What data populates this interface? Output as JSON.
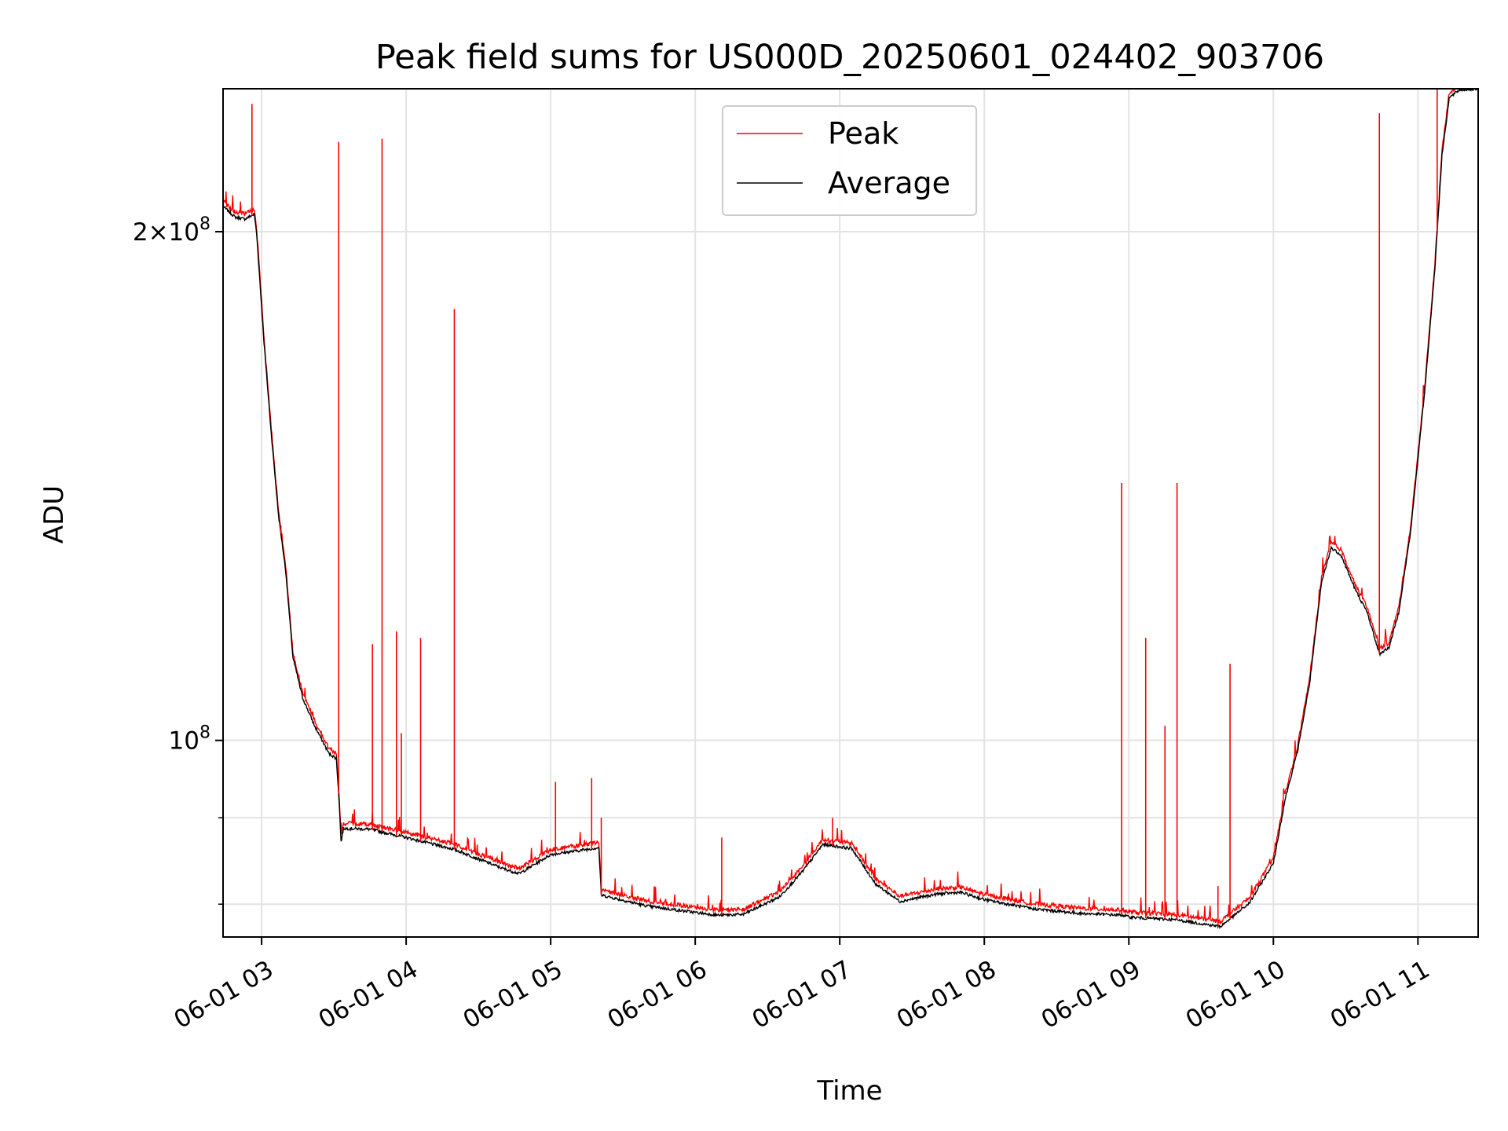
{
  "chart_data": {
    "type": "line",
    "title": "Peak field sums for US000D_20250601_024402_903706",
    "xlabel": "Time",
    "ylabel": "ADU",
    "y_scale": "log",
    "grid": true,
    "legend_position": "top-center",
    "xlim": [
      "2025-06-01 02:44",
      "2025-06-01 11:25"
    ],
    "ylim": [
      76500000,
      243000000
    ],
    "x_ticks": [
      {
        "at": "2025-06-01 03:00",
        "label": "06-01 03"
      },
      {
        "at": "2025-06-01 04:00",
        "label": "06-01 04"
      },
      {
        "at": "2025-06-01 05:00",
        "label": "06-01 05"
      },
      {
        "at": "2025-06-01 06:00",
        "label": "06-01 06"
      },
      {
        "at": "2025-06-01 07:00",
        "label": "06-01 07"
      },
      {
        "at": "2025-06-01 08:00",
        "label": "06-01 08"
      },
      {
        "at": "2025-06-01 09:00",
        "label": "06-01 09"
      },
      {
        "at": "2025-06-01 10:00",
        "label": "06-01 10"
      },
      {
        "at": "2025-06-01 11:00",
        "label": "06-01 11"
      }
    ],
    "y_ticks": [
      {
        "value": 100000000,
        "base": "10",
        "exp": "8",
        "coef": ""
      },
      {
        "value": 200000000,
        "base": "10",
        "exp": "8",
        "coef": "2"
      }
    ],
    "y_minor_ticks": [
      80000000,
      90000000
    ],
    "series": [
      {
        "name": "Average",
        "color": "#000000",
        "points": [
          [
            "2025-06-01 02:44",
            207000000
          ],
          [
            "2025-06-01 02:49",
            204000000
          ],
          [
            "2025-06-01 02:53",
            203500000
          ],
          [
            "2025-06-01 02:57",
            204800000
          ],
          [
            "2025-06-01 02:58",
            199000000
          ],
          [
            "2025-06-01 03:01",
            172000000
          ],
          [
            "2025-06-01 03:04",
            152000000
          ],
          [
            "2025-06-01 03:07",
            136000000
          ],
          [
            "2025-06-01 03:10",
            126000000
          ],
          [
            "2025-06-01 03:13",
            112000000
          ],
          [
            "2025-06-01 03:17",
            106000000
          ],
          [
            "2025-06-01 03:22",
            102000000
          ],
          [
            "2025-06-01 03:28",
            98200000
          ],
          [
            "2025-06-01 03:31",
            97600000
          ],
          [
            "2025-06-01 03:32",
            93000000
          ],
          [
            "2025-06-01 03:33",
            87100000
          ],
          [
            "2025-06-01 03:34",
            88700000
          ],
          [
            "2025-06-01 03:45",
            88600000
          ],
          [
            "2025-06-01 04:00",
            87600000
          ],
          [
            "2025-06-01 04:20",
            86200000
          ],
          [
            "2025-06-01 04:40",
            84000000
          ],
          [
            "2025-06-01 04:47",
            83400000
          ],
          [
            "2025-06-01 05:00",
            85600000
          ],
          [
            "2025-06-01 05:20",
            86400000
          ],
          [
            "2025-06-01 05:21",
            81000000
          ],
          [
            "2025-06-01 05:40",
            79800000
          ],
          [
            "2025-06-01 06:00",
            79100000
          ],
          [
            "2025-06-01 06:10",
            78800000
          ],
          [
            "2025-06-01 06:20",
            78900000
          ],
          [
            "2025-06-01 06:35",
            80800000
          ],
          [
            "2025-06-01 06:45",
            83800000
          ],
          [
            "2025-06-01 06:53",
            86800000
          ],
          [
            "2025-06-01 07:05",
            86300000
          ],
          [
            "2025-06-01 07:15",
            82200000
          ],
          [
            "2025-06-01 07:25",
            80300000
          ],
          [
            "2025-06-01 07:40",
            81100000
          ],
          [
            "2025-06-01 07:50",
            81300000
          ],
          [
            "2025-06-01 08:00",
            80500000
          ],
          [
            "2025-06-01 08:20",
            79500000
          ],
          [
            "2025-06-01 08:40",
            79000000
          ],
          [
            "2025-06-01 08:58",
            78800000
          ],
          [
            "2025-06-01 09:00",
            78600000
          ],
          [
            "2025-06-01 09:20",
            78300000
          ],
          [
            "2025-06-01 09:38",
            77600000
          ],
          [
            "2025-06-01 09:50",
            80100000
          ],
          [
            "2025-06-01 10:00",
            84600000
          ],
          [
            "2025-06-01 10:05",
            92500000
          ],
          [
            "2025-06-01 10:10",
            98500000
          ],
          [
            "2025-06-01 10:15",
            108000000
          ],
          [
            "2025-06-01 10:20",
            124000000
          ],
          [
            "2025-06-01 10:24",
            130000000
          ],
          [
            "2025-06-01 10:28",
            128800000
          ],
          [
            "2025-06-01 10:34",
            122800000
          ],
          [
            "2025-06-01 10:39",
            119000000
          ],
          [
            "2025-06-01 10:44",
            112500000
          ],
          [
            "2025-06-01 10:48",
            113500000
          ],
          [
            "2025-06-01 10:52",
            119000000
          ],
          [
            "2025-06-01 10:57",
            133000000
          ],
          [
            "2025-06-01 11:03",
            162000000
          ],
          [
            "2025-06-01 11:07",
            190000000
          ],
          [
            "2025-06-01 11:10",
            222000000
          ],
          [
            "2025-06-01 11:13",
            240000000
          ],
          [
            "2025-06-01 11:17",
            242500000
          ],
          [
            "2025-06-01 11:25",
            243000000
          ]
        ]
      },
      {
        "name": "Peak",
        "color": "#ff0000",
        "spikes": [
          [
            "2025-06-01 02:56",
            238000000
          ],
          [
            "2025-06-01 03:08",
            134000000
          ],
          [
            "2025-06-01 03:32",
            226000000
          ],
          [
            "2025-06-01 03:46",
            114000000
          ],
          [
            "2025-06-01 03:50",
            227000000
          ],
          [
            "2025-06-01 03:56",
            116000000
          ],
          [
            "2025-06-01 03:58",
            101000000
          ],
          [
            "2025-06-01 04:06",
            115000000
          ],
          [
            "2025-06-01 04:20",
            180000000
          ],
          [
            "2025-06-01 05:02",
            94500000
          ],
          [
            "2025-06-01 05:17",
            95000000
          ],
          [
            "2025-06-01 05:21",
            90000000
          ],
          [
            "2025-06-01 06:11",
            87600000
          ],
          [
            "2025-06-01 06:57",
            90000000
          ],
          [
            "2025-06-01 08:57",
            142000000
          ],
          [
            "2025-06-01 09:07",
            115000000
          ],
          [
            "2025-06-01 09:15",
            102000000
          ],
          [
            "2025-06-01 09:20",
            142000000
          ],
          [
            "2025-06-01 09:37",
            82000000
          ],
          [
            "2025-06-01 09:42",
            111000000
          ],
          [
            "2025-06-01 10:44",
            235000000
          ],
          [
            "2025-06-01 11:08",
            243000000
          ]
        ]
      }
    ]
  }
}
